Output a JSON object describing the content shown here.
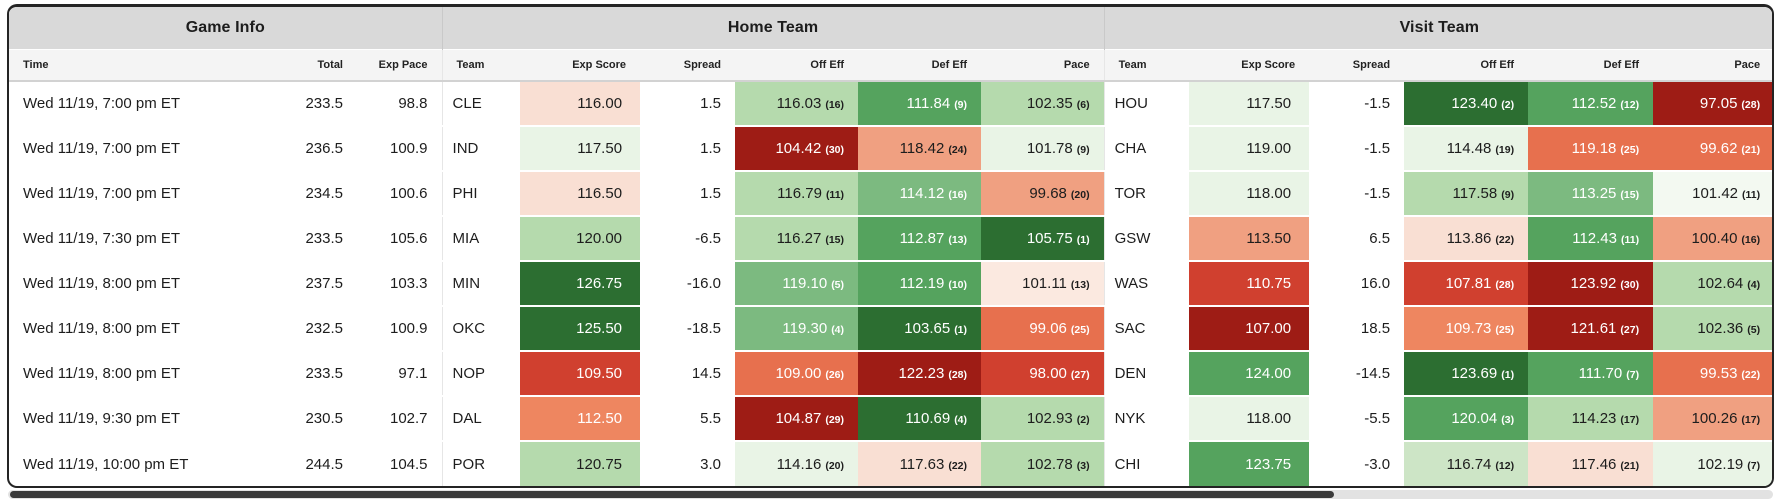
{
  "table": {
    "groups": [
      "Game Info",
      "Home Team",
      "Visit Team"
    ],
    "columns": [
      "Time",
      "Total",
      "Exp Pace",
      "Team",
      "Exp Score",
      "Spread",
      "Off Eff",
      "Def Eff",
      "Pace",
      "Team",
      "Exp Score",
      "Spread",
      "Off Eff",
      "Def Eff",
      "Pace"
    ],
    "rows": [
      {
        "time": "Wed 11/19, 7:00 pm ET",
        "total": "233.5",
        "exp_pace": "98.8",
        "home": {
          "team": "CLE",
          "exp_score": {
            "v": "116.00",
            "tone": "r2"
          },
          "spread": "1.5",
          "off_eff": {
            "v": "116.03",
            "rank": 16,
            "tone": "g3"
          },
          "def_eff": {
            "v": "111.84",
            "rank": 9,
            "tone": "g4"
          },
          "pace": {
            "v": "102.35",
            "rank": 6,
            "tone": "g3"
          }
        },
        "visit": {
          "team": "HOU",
          "exp_score": {
            "v": "117.50",
            "tone": "g1"
          },
          "spread": "-1.5",
          "off_eff": {
            "v": "123.40",
            "rank": 2,
            "tone": "g5"
          },
          "def_eff": {
            "v": "112.52",
            "rank": 12,
            "tone": "g4"
          },
          "pace": {
            "v": "97.05",
            "rank": 28,
            "tone": "r6"
          }
        }
      },
      {
        "time": "Wed 11/19, 7:00 pm ET",
        "total": "236.5",
        "exp_pace": "100.9",
        "home": {
          "team": "IND",
          "exp_score": {
            "v": "117.50",
            "tone": "g1"
          },
          "spread": "1.5",
          "off_eff": {
            "v": "104.42",
            "rank": 30,
            "tone": "r6"
          },
          "def_eff": {
            "v": "118.42",
            "rank": 24,
            "tone": "r3"
          },
          "pace": {
            "v": "101.78",
            "rank": 9,
            "tone": "g1"
          }
        },
        "visit": {
          "team": "CHA",
          "exp_score": {
            "v": "119.00",
            "tone": "g1"
          },
          "spread": "-1.5",
          "off_eff": {
            "v": "114.48",
            "rank": 19,
            "tone": "g1"
          },
          "def_eff": {
            "v": "119.18",
            "rank": 25,
            "tone": "r4"
          },
          "pace": {
            "v": "99.62",
            "rank": 21,
            "tone": "r4"
          }
        }
      },
      {
        "time": "Wed 11/19, 7:00 pm ET",
        "total": "234.5",
        "exp_pace": "100.6",
        "home": {
          "team": "PHI",
          "exp_score": {
            "v": "116.50",
            "tone": "r2"
          },
          "spread": "1.5",
          "off_eff": {
            "v": "116.79",
            "rank": 11,
            "tone": "g3"
          },
          "def_eff": {
            "v": "114.12",
            "rank": 16,
            "tone": "g35"
          },
          "pace": {
            "v": "99.68",
            "rank": 20,
            "tone": "r3"
          }
        },
        "visit": {
          "team": "TOR",
          "exp_score": {
            "v": "118.00",
            "tone": "g1"
          },
          "spread": "-1.5",
          "off_eff": {
            "v": "117.58",
            "rank": 9,
            "tone": "g3"
          },
          "def_eff": {
            "v": "113.25",
            "rank": 15,
            "tone": "g35"
          },
          "pace": {
            "v": "101.42",
            "rank": 11,
            "tone": "g0"
          }
        }
      },
      {
        "time": "Wed 11/19, 7:30 pm ET",
        "total": "233.5",
        "exp_pace": "105.6",
        "home": {
          "team": "MIA",
          "exp_score": {
            "v": "120.00",
            "tone": "g3"
          },
          "spread": "-6.5",
          "off_eff": {
            "v": "116.27",
            "rank": 15,
            "tone": "g3"
          },
          "def_eff": {
            "v": "112.87",
            "rank": 13,
            "tone": "g4"
          },
          "pace": {
            "v": "105.75",
            "rank": 1,
            "tone": "g5"
          }
        },
        "visit": {
          "team": "GSW",
          "exp_score": {
            "v": "113.50",
            "tone": "r3"
          },
          "spread": "6.5",
          "off_eff": {
            "v": "113.86",
            "rank": 22,
            "tone": "r2"
          },
          "def_eff": {
            "v": "112.43",
            "rank": 11,
            "tone": "g4"
          },
          "pace": {
            "v": "100.40",
            "rank": 16,
            "tone": "r3"
          }
        }
      },
      {
        "time": "Wed 11/19, 8:00 pm ET",
        "total": "237.5",
        "exp_pace": "103.3",
        "home": {
          "team": "MIN",
          "exp_score": {
            "v": "126.75",
            "tone": "g5"
          },
          "spread": "-16.0",
          "off_eff": {
            "v": "119.10",
            "rank": 5,
            "tone": "g35"
          },
          "def_eff": {
            "v": "112.19",
            "rank": 10,
            "tone": "g4"
          },
          "pace": {
            "v": "101.11",
            "rank": 13,
            "tone": "r1"
          }
        },
        "visit": {
          "team": "WAS",
          "exp_score": {
            "v": "110.75",
            "tone": "r5"
          },
          "spread": "16.0",
          "off_eff": {
            "v": "107.81",
            "rank": 28,
            "tone": "r5"
          },
          "def_eff": {
            "v": "123.92",
            "rank": 30,
            "tone": "r6"
          },
          "pace": {
            "v": "102.64",
            "rank": 4,
            "tone": "g3"
          }
        }
      },
      {
        "time": "Wed 11/19, 8:00 pm ET",
        "total": "232.5",
        "exp_pace": "100.9",
        "home": {
          "team": "OKC",
          "exp_score": {
            "v": "125.50",
            "tone": "g5"
          },
          "spread": "-18.5",
          "off_eff": {
            "v": "119.30",
            "rank": 4,
            "tone": "g35"
          },
          "def_eff": {
            "v": "103.65",
            "rank": 1,
            "tone": "g5"
          },
          "pace": {
            "v": "99.06",
            "rank": 25,
            "tone": "r4"
          }
        },
        "visit": {
          "team": "SAC",
          "exp_score": {
            "v": "107.00",
            "tone": "r6"
          },
          "spread": "18.5",
          "off_eff": {
            "v": "109.73",
            "rank": 25,
            "tone": "r35"
          },
          "def_eff": {
            "v": "121.61",
            "rank": 27,
            "tone": "r6"
          },
          "pace": {
            "v": "102.36",
            "rank": 5,
            "tone": "g3"
          }
        }
      },
      {
        "time": "Wed 11/19, 8:00 pm ET",
        "total": "233.5",
        "exp_pace": "97.1",
        "home": {
          "team": "NOP",
          "exp_score": {
            "v": "109.50",
            "tone": "r5"
          },
          "spread": "14.5",
          "off_eff": {
            "v": "109.00",
            "rank": 26,
            "tone": "r4"
          },
          "def_eff": {
            "v": "122.23",
            "rank": 28,
            "tone": "r6"
          },
          "pace": {
            "v": "98.00",
            "rank": 27,
            "tone": "r5"
          }
        },
        "visit": {
          "team": "DEN",
          "exp_score": {
            "v": "124.00",
            "tone": "g4"
          },
          "spread": "-14.5",
          "off_eff": {
            "v": "123.69",
            "rank": 1,
            "tone": "g5"
          },
          "def_eff": {
            "v": "111.70",
            "rank": 7,
            "tone": "g4"
          },
          "pace": {
            "v": "99.53",
            "rank": 22,
            "tone": "r4"
          }
        }
      },
      {
        "time": "Wed 11/19, 9:30 pm ET",
        "total": "230.5",
        "exp_pace": "102.7",
        "home": {
          "team": "DAL",
          "exp_score": {
            "v": "112.50",
            "tone": "r35"
          },
          "spread": "5.5",
          "off_eff": {
            "v": "104.87",
            "rank": 29,
            "tone": "r6"
          },
          "def_eff": {
            "v": "110.69",
            "rank": 4,
            "tone": "g5"
          },
          "pace": {
            "v": "102.93",
            "rank": 2,
            "tone": "g3"
          }
        },
        "visit": {
          "team": "NYK",
          "exp_score": {
            "v": "118.00",
            "tone": "g1"
          },
          "spread": "-5.5",
          "off_eff": {
            "v": "120.04",
            "rank": 3,
            "tone": "g4"
          },
          "def_eff": {
            "v": "114.23",
            "rank": 17,
            "tone": "g3"
          },
          "pace": {
            "v": "100.26",
            "rank": 17,
            "tone": "r3"
          }
        }
      },
      {
        "time": "Wed 11/19, 10:00 pm ET",
        "total": "244.5",
        "exp_pace": "104.5",
        "home": {
          "team": "POR",
          "exp_score": {
            "v": "120.75",
            "tone": "g3"
          },
          "spread": "3.0",
          "off_eff": {
            "v": "114.16",
            "rank": 20,
            "tone": "g1"
          },
          "def_eff": {
            "v": "117.63",
            "rank": 22,
            "tone": "r2"
          },
          "pace": {
            "v": "102.78",
            "rank": 3,
            "tone": "g3"
          }
        },
        "visit": {
          "team": "CHI",
          "exp_score": {
            "v": "123.75",
            "tone": "g4"
          },
          "spread": "-3.0",
          "off_eff": {
            "v": "116.74",
            "rank": 12,
            "tone": "g2"
          },
          "def_eff": {
            "v": "117.46",
            "rank": 21,
            "tone": "r2"
          },
          "pace": {
            "v": "102.19",
            "rank": 7,
            "tone": "g1"
          }
        }
      }
    ]
  },
  "palette": {
    "tones": {
      "g5": {
        "bg": "#2c6e31",
        "text": "#ffffff"
      },
      "g4": {
        "bg": "#55a35e",
        "text": "#ffffff"
      },
      "g35": {
        "bg": "#7cba80",
        "text": "#ffffff"
      },
      "g3": {
        "bg": "#b5daad",
        "text": "#1d1d1d"
      },
      "g2": {
        "bg": "#cde5c6",
        "text": "#1d1d1d"
      },
      "g1": {
        "bg": "#e9f4e6",
        "text": "#1d1d1d"
      },
      "g0": {
        "bg": "#f3f9f1",
        "text": "#1d1d1d"
      },
      "r1": {
        "bg": "#fbe9e0",
        "text": "#1d1d1d"
      },
      "r2": {
        "bg": "#f9dfd3",
        "text": "#1d1d1d"
      },
      "r3": {
        "bg": "#f0a081",
        "text": "#1d1d1d"
      },
      "r35": {
        "bg": "#ee8660",
        "text": "#ffffff"
      },
      "r4": {
        "bg": "#e7704e",
        "text": "#ffffff"
      },
      "r5": {
        "bg": "#d0402f",
        "text": "#ffffff"
      },
      "r6": {
        "bg": "#9e1c15",
        "text": "#ffffff"
      }
    },
    "header_bg": "#d9d9d9",
    "subheader_bg": "#f4f4f4",
    "border_dark": "#242424"
  },
  "scrollbar": {
    "thumb_width_pct": 75,
    "thumb_left_pct": 0
  }
}
